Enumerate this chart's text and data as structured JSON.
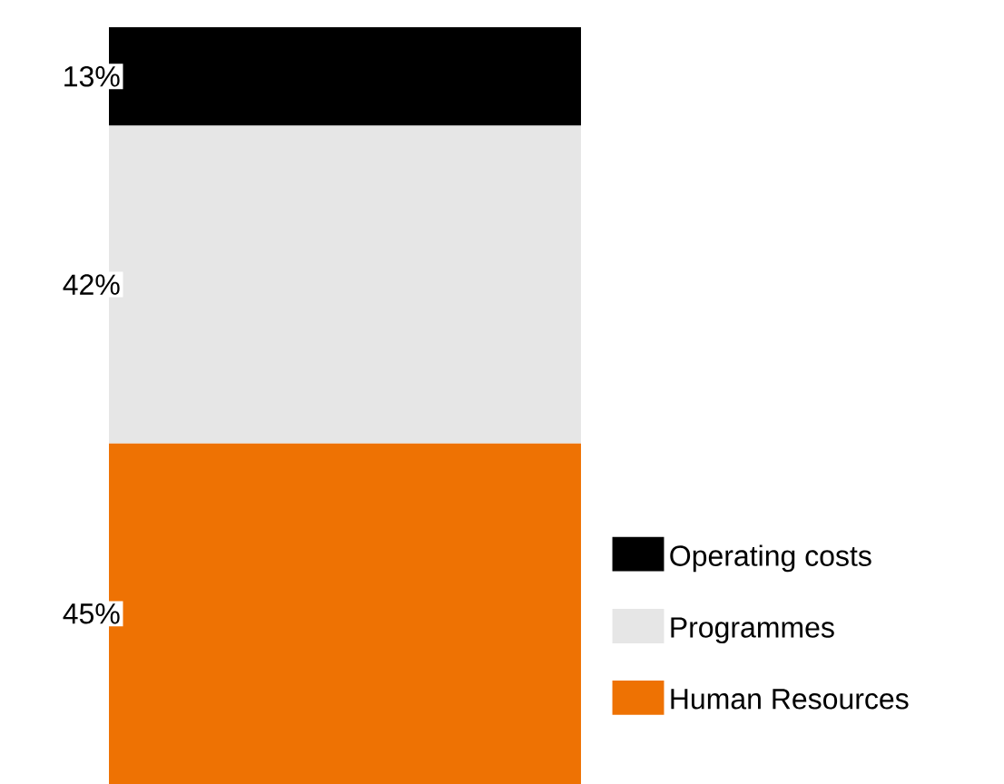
{
  "chart_data": {
    "type": "bar",
    "stacked": true,
    "categories": [
      null
    ],
    "legend": "right",
    "series": [
      {
        "name": "Human Resources",
        "color": "#ee7203",
        "values": [
          45
        ],
        "value_labels": [
          "45%"
        ]
      },
      {
        "name": "Programmes",
        "color": "#e6e6e6",
        "values": [
          42
        ],
        "value_labels": [
          "42%"
        ]
      },
      {
        "name": "Operating costs",
        "color": "#000000",
        "values": [
          13
        ],
        "value_labels": [
          "13%"
        ]
      }
    ]
  }
}
